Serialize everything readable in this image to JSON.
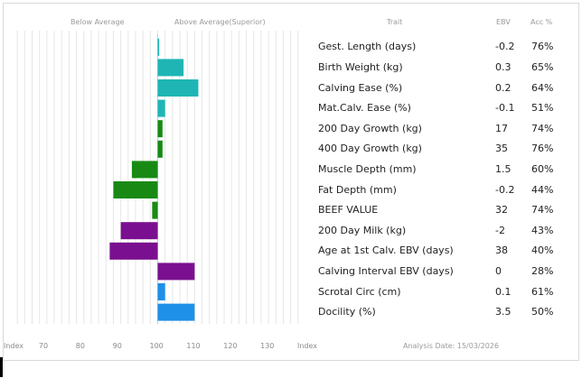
{
  "headers": {
    "below_average": "Below Average",
    "above_average": "Above Average(Superior)",
    "trait": "Trait",
    "ebv": "EBV",
    "acc": "Acc %"
  },
  "footer": {
    "index_left": "Index",
    "index_right": "Index",
    "analysis_date": "Analysis Date: 15/03/2026"
  },
  "chart_data": {
    "type": "bar",
    "orientation": "horizontal",
    "baseline": 100,
    "xlim": [
      60,
      140
    ],
    "xticks": [
      "Index",
      "70",
      "80",
      "90",
      "100",
      "110",
      "120",
      "130",
      "Index"
    ],
    "xtick_values": [
      60,
      70,
      80,
      90,
      100,
      110,
      120,
      130,
      140
    ],
    "grid": true,
    "categories": [
      "Gest. Length (days)",
      "Birth Weight (kg)",
      "Calving Ease (%)",
      "Mat.Calv. Ease (%)",
      "200 Day Growth (kg)",
      "400 Day Growth (kg)",
      "Muscle Depth (mm)",
      "Fat Depth (mm)",
      "BEEF VALUE",
      "200 Day Milk (kg)",
      "Age at 1st Calv. EBV (days)",
      "Calving Interval EBV (days)",
      "Scrotal Circ (cm)",
      "Docility (%)"
    ],
    "index_values": [
      100.4,
      107,
      111,
      102,
      101.3,
      101.3,
      93,
      88,
      98.5,
      90,
      87,
      110,
      102,
      110
    ],
    "ebv": [
      "-0.2",
      "0.3",
      "0.2",
      "-0.1",
      "17",
      "35",
      "1.5",
      "-0.2",
      "32",
      "-2",
      "38",
      "0",
      "0.1",
      "3.5"
    ],
    "acc": [
      "76%",
      "65%",
      "64%",
      "51%",
      "74%",
      "76%",
      "60%",
      "44%",
      "74%",
      "43%",
      "40%",
      "28%",
      "61%",
      "50%"
    ],
    "bar_colors": [
      "#1fb5b5",
      "#1fb5b5",
      "#1fb5b5",
      "#1fb5b5",
      "#188a14",
      "#188a14",
      "#188a14",
      "#188a14",
      "#188a14",
      "#7a1090",
      "#7a1090",
      "#7a1090",
      "#1e90e8",
      "#1e90e8"
    ]
  }
}
